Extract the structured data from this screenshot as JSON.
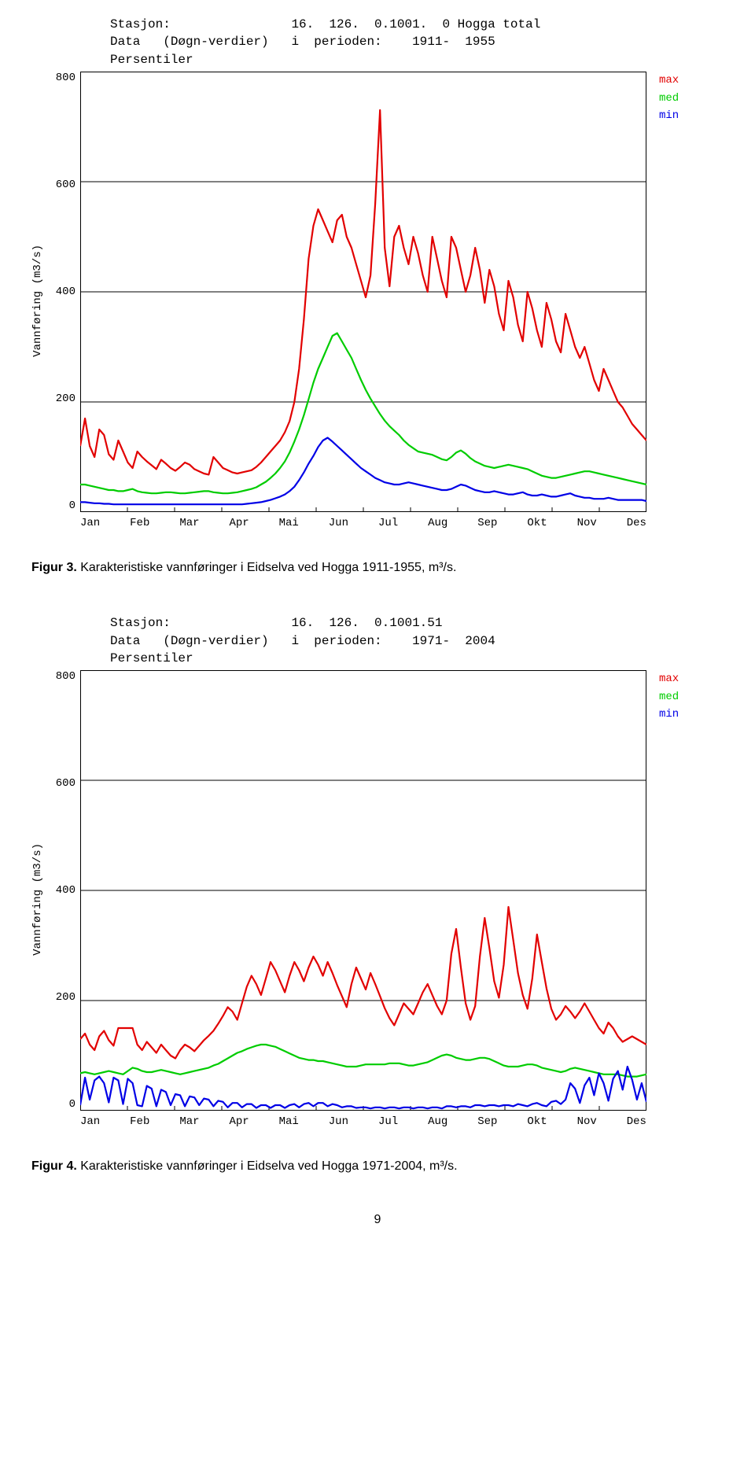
{
  "page_number": "9",
  "chart1": {
    "type": "line",
    "header_l1": "Stasjon:                16.  126.  0.1001.  0 Hogga total",
    "header_l2": "Data   (Døgn-verdier)   i  perioden:    1911-  1955",
    "header_l3": "Persentiler",
    "ylabel": "Vannføring (m3/s)",
    "ylim": [
      0,
      800
    ],
    "ytick_step": 200,
    "yticks": [
      "800",
      "600",
      "400",
      "200",
      "0"
    ],
    "months": [
      "Jan",
      "Feb",
      "Mar",
      "Apr",
      "Mai",
      "Jun",
      "Jul",
      "Aug",
      "Sep",
      "Okt",
      "Nov",
      "Des"
    ],
    "grid_color": "#000000",
    "background_color": "#ffffff",
    "line_width": 2.2,
    "legend": [
      {
        "label": "max",
        "color": "#e20000"
      },
      {
        "label": "med",
        "color": "#00cc00"
      },
      {
        "label": "min",
        "color": "#0000e6"
      }
    ],
    "caption_strong": "Figur 3.",
    "caption_rest": " Karakteristiske vannføringer i Eidselva ved Hogga 1911-1955, m³/s.",
    "series": {
      "max": [
        120,
        170,
        120,
        100,
        150,
        140,
        105,
        95,
        130,
        110,
        90,
        80,
        110,
        100,
        92,
        85,
        78,
        95,
        88,
        80,
        75,
        82,
        90,
        86,
        78,
        74,
        70,
        68,
        100,
        90,
        80,
        76,
        72,
        70,
        72,
        74,
        76,
        82,
        90,
        100,
        110,
        120,
        130,
        145,
        165,
        200,
        260,
        350,
        460,
        520,
        550,
        530,
        510,
        490,
        530,
        540,
        500,
        480,
        450,
        420,
        390,
        430,
        560,
        730,
        480,
        410,
        500,
        520,
        480,
        450,
        500,
        470,
        430,
        400,
        500,
        460,
        420,
        390,
        500,
        480,
        440,
        400,
        430,
        480,
        440,
        380,
        440,
        410,
        360,
        330,
        420,
        390,
        340,
        310,
        400,
        370,
        330,
        300,
        380,
        350,
        310,
        290,
        360,
        330,
        300,
        280,
        300,
        270,
        240,
        220,
        260,
        240,
        220,
        200,
        190,
        175,
        160,
        150,
        140,
        130
      ],
      "med": [
        50,
        50,
        48,
        46,
        44,
        42,
        40,
        40,
        38,
        38,
        40,
        42,
        38,
        36,
        35,
        34,
        34,
        35,
        36,
        36,
        35,
        34,
        34,
        35,
        36,
        37,
        38,
        38,
        36,
        35,
        34,
        34,
        35,
        36,
        38,
        40,
        42,
        45,
        50,
        55,
        62,
        70,
        80,
        92,
        108,
        128,
        150,
        176,
        205,
        235,
        260,
        280,
        300,
        320,
        325,
        310,
        295,
        280,
        260,
        240,
        222,
        206,
        192,
        178,
        166,
        156,
        148,
        140,
        130,
        122,
        116,
        110,
        108,
        106,
        104,
        100,
        96,
        94,
        100,
        108,
        112,
        106,
        98,
        92,
        88,
        84,
        82,
        80,
        82,
        84,
        86,
        84,
        82,
        80,
        78,
        74,
        70,
        66,
        64,
        62,
        62,
        64,
        66,
        68,
        70,
        72,
        74,
        74,
        72,
        70,
        68,
        66,
        64,
        62,
        60,
        58,
        56,
        54,
        52,
        50
      ],
      "min": [
        18,
        18,
        17,
        16,
        16,
        15,
        15,
        14,
        14,
        14,
        14,
        14,
        14,
        14,
        14,
        14,
        14,
        14,
        14,
        14,
        14,
        14,
        14,
        14,
        14,
        14,
        14,
        14,
        14,
        14,
        14,
        14,
        14,
        14,
        14,
        15,
        16,
        17,
        18,
        20,
        22,
        25,
        28,
        32,
        38,
        46,
        58,
        72,
        88,
        102,
        118,
        130,
        135,
        128,
        120,
        112,
        104,
        96,
        88,
        80,
        74,
        68,
        62,
        58,
        54,
        52,
        50,
        50,
        52,
        54,
        52,
        50,
        48,
        46,
        44,
        42,
        40,
        40,
        42,
        46,
        50,
        48,
        44,
        40,
        38,
        36,
        36,
        38,
        36,
        34,
        32,
        32,
        34,
        36,
        32,
        30,
        30,
        32,
        30,
        28,
        28,
        30,
        32,
        34,
        30,
        28,
        26,
        26,
        24,
        24,
        24,
        26,
        24,
        22,
        22,
        22,
        22,
        22,
        22,
        20
      ]
    }
  },
  "chart2": {
    "type": "line",
    "header_l1": "Stasjon:                16.  126.  0.1001.51",
    "header_l2": "Data   (Døgn-verdier)   i  perioden:    1971-  2004",
    "header_l3": "Persentiler",
    "ylabel": "Vannføring (m3/s)",
    "ylim": [
      0,
      800
    ],
    "ytick_step": 200,
    "yticks": [
      "800",
      "600",
      "400",
      "200",
      "0"
    ],
    "months": [
      "Jan",
      "Feb",
      "Mar",
      "Apr",
      "Mai",
      "Jun",
      "Jul",
      "Aug",
      "Sep",
      "Okt",
      "Nov",
      "Des"
    ],
    "grid_color": "#000000",
    "background_color": "#ffffff",
    "line_width": 2.2,
    "legend": [
      {
        "label": "max",
        "color": "#e20000"
      },
      {
        "label": "med",
        "color": "#00cc00"
      },
      {
        "label": "min",
        "color": "#0000e6"
      }
    ],
    "caption_strong": "Figur 4.",
    "caption_rest": " Karakteristiske vannføringer i Eidselva ved Hogga 1971-2004, m³/s.",
    "series": {
      "max": [
        130,
        140,
        120,
        110,
        135,
        145,
        128,
        118,
        150,
        150,
        150,
        150,
        120,
        110,
        125,
        115,
        105,
        120,
        110,
        100,
        95,
        110,
        120,
        115,
        108,
        118,
        128,
        136,
        145,
        158,
        172,
        188,
        180,
        165,
        195,
        225,
        245,
        230,
        210,
        240,
        270,
        255,
        235,
        215,
        245,
        270,
        255,
        235,
        260,
        280,
        265,
        245,
        270,
        250,
        228,
        208,
        188,
        230,
        260,
        240,
        220,
        250,
        230,
        208,
        186,
        168,
        155,
        175,
        195,
        185,
        175,
        195,
        215,
        230,
        210,
        190,
        175,
        200,
        285,
        330,
        260,
        195,
        165,
        190,
        280,
        350,
        295,
        235,
        205,
        265,
        370,
        310,
        250,
        210,
        185,
        240,
        320,
        270,
        222,
        185,
        165,
        175,
        190,
        180,
        168,
        180,
        195,
        180,
        165,
        150,
        140,
        160,
        150,
        135,
        125,
        130,
        135,
        130,
        125,
        120
      ],
      "med": [
        68,
        70,
        68,
        66,
        68,
        70,
        72,
        70,
        68,
        66,
        72,
        78,
        76,
        72,
        70,
        70,
        72,
        74,
        72,
        70,
        68,
        66,
        68,
        70,
        72,
        74,
        76,
        78,
        82,
        85,
        90,
        95,
        100,
        105,
        108,
        112,
        115,
        118,
        120,
        120,
        118,
        116,
        112,
        108,
        104,
        100,
        96,
        94,
        92,
        92,
        90,
        90,
        88,
        86,
        84,
        82,
        80,
        80,
        80,
        82,
        84,
        84,
        84,
        84,
        84,
        86,
        86,
        86,
        84,
        82,
        82,
        84,
        86,
        88,
        92,
        96,
        100,
        102,
        100,
        96,
        94,
        92,
        92,
        94,
        96,
        96,
        94,
        90,
        86,
        82,
        80,
        80,
        80,
        82,
        84,
        84,
        82,
        78,
        76,
        74,
        72,
        70,
        72,
        76,
        78,
        76,
        74,
        72,
        70,
        68,
        66,
        66,
        66,
        66,
        64,
        62,
        62,
        62,
        64,
        66
      ],
      "min": [
        10,
        60,
        20,
        55,
        62,
        50,
        15,
        60,
        55,
        12,
        58,
        50,
        10,
        8,
        45,
        40,
        8,
        38,
        34,
        10,
        30,
        28,
        8,
        26,
        24,
        10,
        22,
        20,
        8,
        18,
        16,
        6,
        14,
        14,
        6,
        12,
        12,
        5,
        10,
        10,
        5,
        10,
        10,
        5,
        10,
        12,
        6,
        12,
        14,
        8,
        14,
        14,
        8,
        12,
        10,
        6,
        8,
        8,
        5,
        6,
        6,
        4,
        6,
        6,
        4,
        6,
        6,
        4,
        6,
        6,
        4,
        6,
        6,
        4,
        6,
        6,
        4,
        8,
        8,
        6,
        8,
        8,
        6,
        10,
        10,
        8,
        10,
        10,
        8,
        10,
        10,
        8,
        12,
        10,
        8,
        12,
        14,
        10,
        8,
        16,
        18,
        12,
        20,
        50,
        40,
        14,
        46,
        60,
        28,
        68,
        50,
        18,
        58,
        72,
        38,
        80,
        56,
        20,
        50,
        16
      ]
    }
  }
}
